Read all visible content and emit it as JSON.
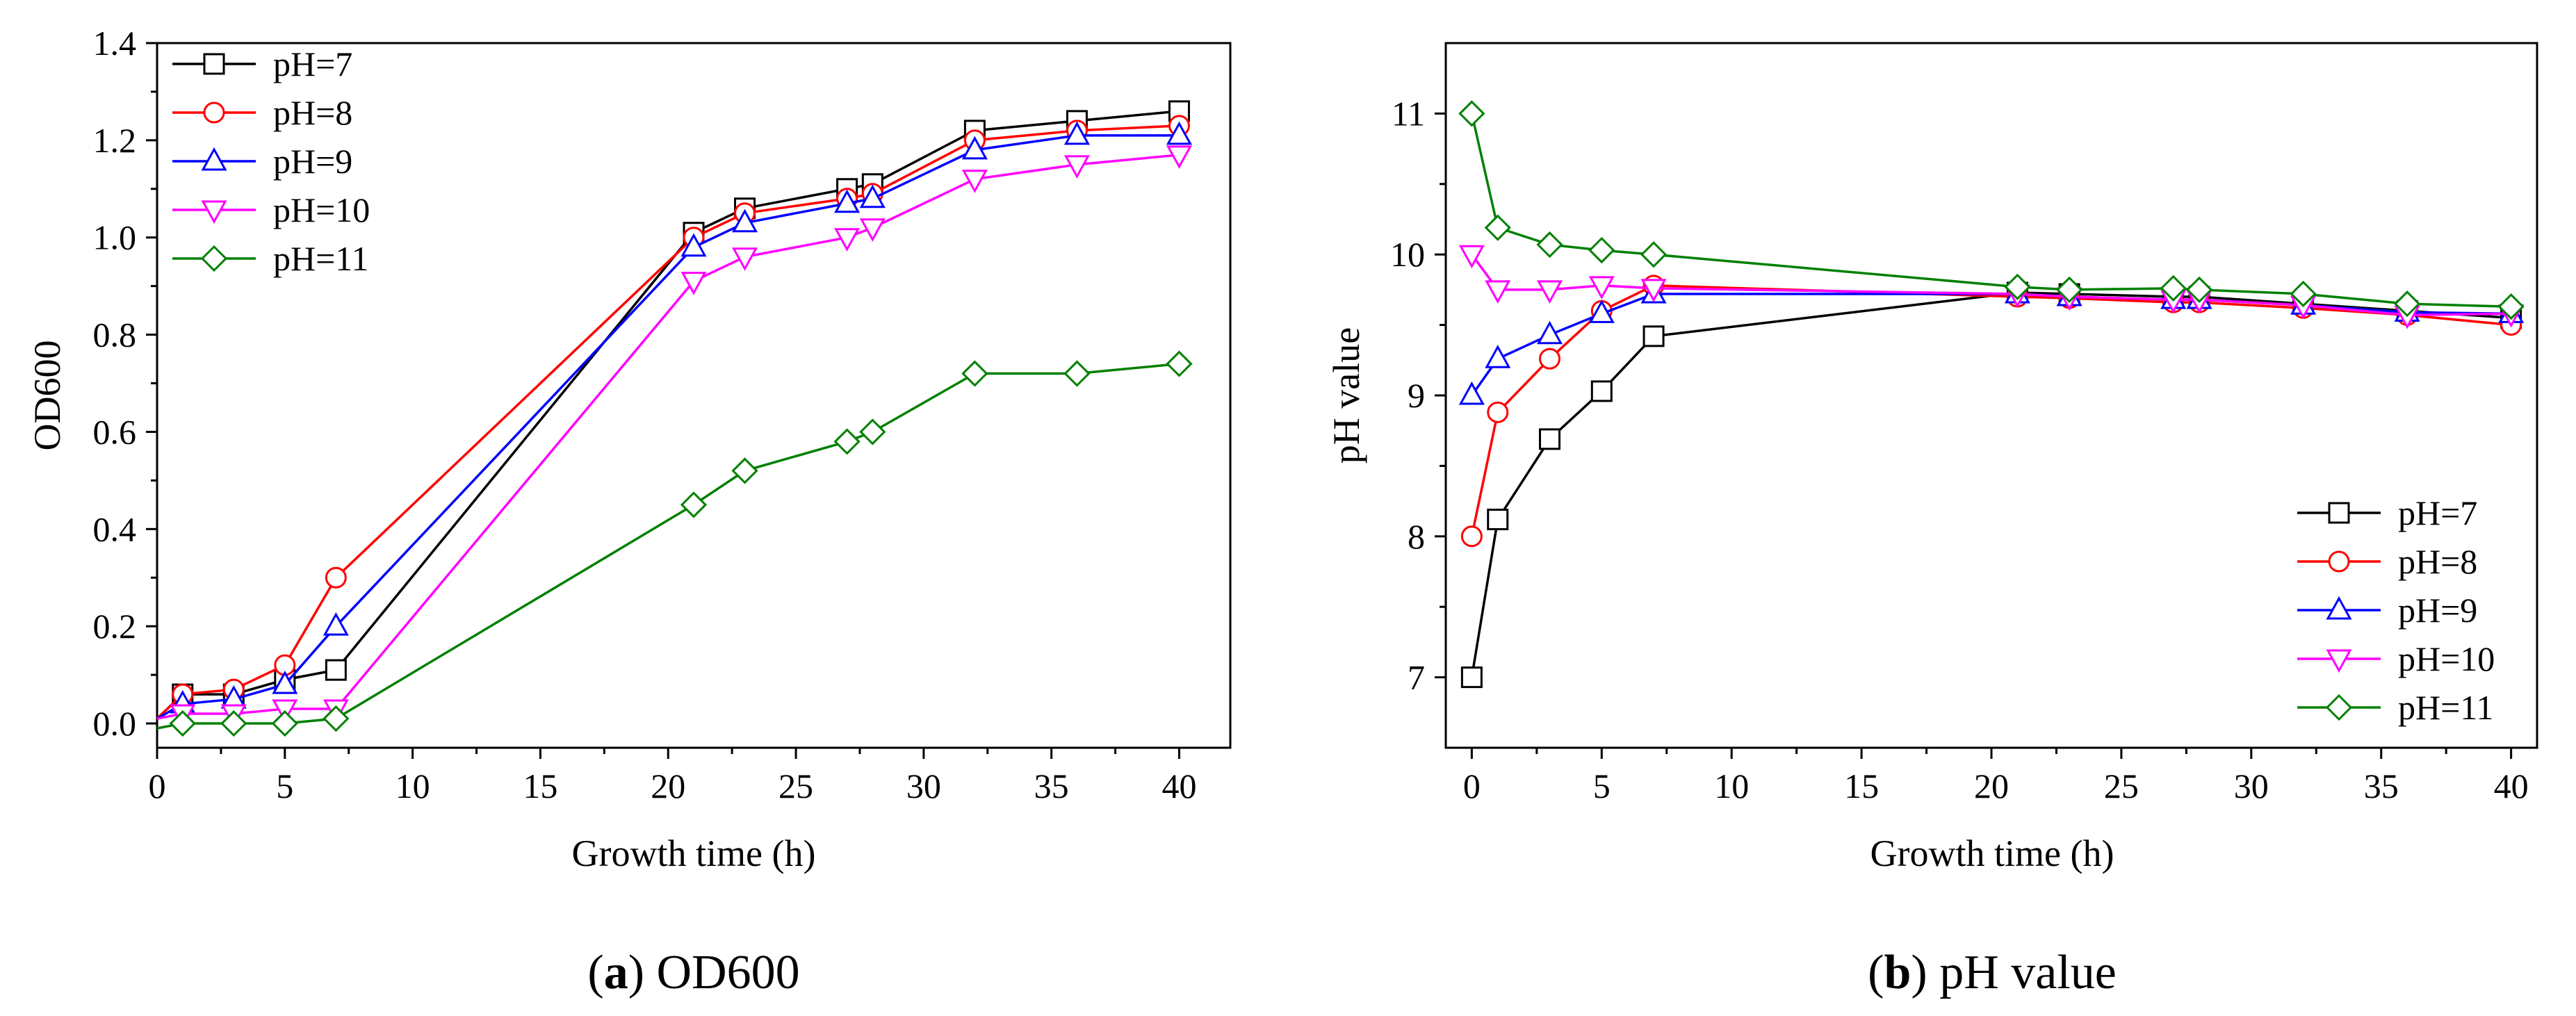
{
  "colors": {
    "pH=7": "#000000",
    "pH=8": "#ff0000",
    "pH=9": "#0000ff",
    "pH=10": "#ff00ff",
    "pH=11": "#008000"
  },
  "markers": {
    "pH=7": "square",
    "pH=8": "circle",
    "pH=9": "triangle-up",
    "pH=10": "triangle-down",
    "pH=11": "diamond"
  },
  "chart_data": [
    {
      "type": "line",
      "panel": "a",
      "caption_letter": "a",
      "caption_text": "OD600",
      "title": "",
      "xlabel": "Growth time (h)",
      "ylabel": "OD600",
      "xlim": [
        0,
        42
      ],
      "ylim": [
        -0.05,
        1.4
      ],
      "xticks": [
        0,
        5,
        10,
        15,
        20,
        25,
        30,
        35,
        40
      ],
      "yticks": [
        0.0,
        0.2,
        0.4,
        0.6,
        0.8,
        1.0,
        1.2,
        1.4
      ],
      "xtick_labels": [
        "0",
        "5",
        "10",
        "15",
        "20",
        "25",
        "30",
        "35",
        "40"
      ],
      "ytick_labels": [
        "0.0",
        "0.2",
        "0.4",
        "0.6",
        "0.8",
        "1.0",
        "1.2",
        "1.4"
      ],
      "legend_position": "top-left",
      "x": [
        1,
        3,
        5,
        7,
        21,
        23,
        27,
        28,
        32,
        36,
        40
      ],
      "series": [
        {
          "name": "pH=7",
          "x0": 0,
          "y0": 0.01,
          "values": [
            0.06,
            0.06,
            0.09,
            0.11,
            1.01,
            1.06,
            1.1,
            1.11,
            1.22,
            1.24,
            1.26
          ]
        },
        {
          "name": "pH=8",
          "x0": 0,
          "y0": 0.01,
          "values": [
            0.06,
            0.07,
            0.12,
            0.3,
            1.0,
            1.05,
            1.08,
            1.09,
            1.2,
            1.22,
            1.23
          ]
        },
        {
          "name": "pH=9",
          "x0": 0,
          "y0": 0.01,
          "values": [
            0.04,
            0.05,
            0.08,
            0.2,
            0.98,
            1.03,
            1.07,
            1.08,
            1.18,
            1.21,
            1.21
          ]
        },
        {
          "name": "pH=10",
          "x0": 0,
          "y0": 0.01,
          "values": [
            0.02,
            0.02,
            0.03,
            0.03,
            0.91,
            0.96,
            1.0,
            1.02,
            1.12,
            1.15,
            1.17
          ]
        },
        {
          "name": "pH=11",
          "x0": 0,
          "y0": -0.01,
          "values": [
            0.0,
            0.0,
            0.0,
            0.01,
            0.45,
            0.52,
            0.58,
            0.6,
            0.72,
            0.72,
            0.74
          ]
        }
      ]
    },
    {
      "type": "line",
      "panel": "b",
      "caption_letter": "b",
      "caption_text": "pH value",
      "title": "",
      "xlabel": "Growth time (h)",
      "ylabel": "pH value",
      "xlim": [
        -1,
        41
      ],
      "ylim": [
        6.5,
        11.5
      ],
      "xticks": [
        0,
        5,
        10,
        15,
        20,
        25,
        30,
        35,
        40
      ],
      "yticks": [
        7,
        8,
        9,
        10,
        11
      ],
      "xtick_labels": [
        "0",
        "5",
        "10",
        "15",
        "20",
        "25",
        "30",
        "35",
        "40"
      ],
      "ytick_labels": [
        "7",
        "8",
        "9",
        "10",
        "11"
      ],
      "legend_position": "bottom-right",
      "x": [
        0,
        1,
        3,
        5,
        7,
        21,
        23,
        27,
        28,
        32,
        36,
        40
      ],
      "series": [
        {
          "name": "pH=7",
          "values": [
            7.0,
            8.12,
            8.69,
            9.03,
            9.42,
            9.73,
            9.72,
            9.7,
            9.7,
            9.65,
            9.6,
            9.55
          ]
        },
        {
          "name": "pH=8",
          "values": [
            8.0,
            8.88,
            9.26,
            9.6,
            9.78,
            9.7,
            9.69,
            9.66,
            9.66,
            9.62,
            9.57,
            9.5
          ]
        },
        {
          "name": "pH=9",
          "values": [
            9.0,
            9.26,
            9.43,
            9.58,
            9.72,
            9.72,
            9.7,
            9.68,
            9.68,
            9.64,
            9.59,
            9.58
          ]
        },
        {
          "name": "pH=10",
          "values": [
            10.0,
            9.75,
            9.75,
            9.78,
            9.76,
            9.72,
            9.7,
            9.68,
            9.68,
            9.64,
            9.57,
            9.58
          ]
        },
        {
          "name": "pH=11",
          "values": [
            11.0,
            10.19,
            10.07,
            10.03,
            10.0,
            9.77,
            9.75,
            9.76,
            9.75,
            9.72,
            9.65,
            9.63
          ]
        }
      ]
    }
  ]
}
